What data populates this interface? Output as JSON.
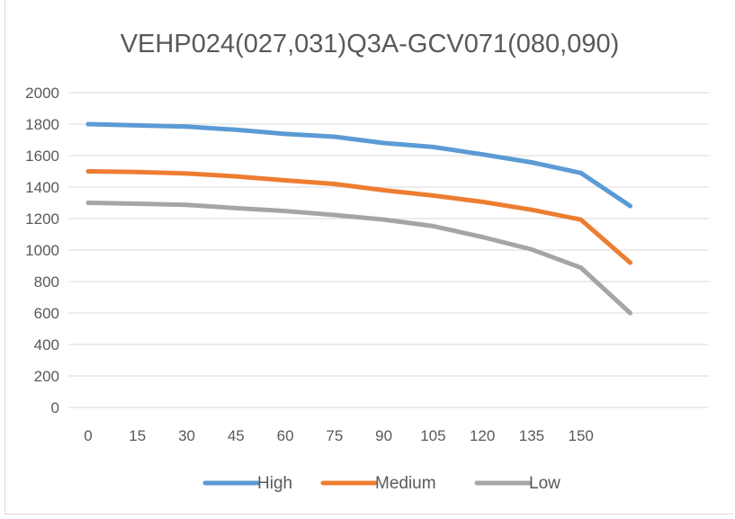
{
  "chart_data": {
    "type": "line",
    "title": "VEHP024(027,031)Q3A-GCV071(080,090)",
    "xlabel": "",
    "ylabel": "",
    "x": [
      "0",
      "15",
      "30",
      "45",
      "60",
      "75",
      "90",
      "105",
      "120",
      "135",
      "150",
      ""
    ],
    "ylim": [
      0,
      2000
    ],
    "yticks": [
      "0",
      "200",
      "400",
      "600",
      "800",
      "1000",
      "1200",
      "1400",
      "1600",
      "1800",
      "2000"
    ],
    "grid": true,
    "legend": "bottom",
    "series": [
      {
        "name": "High",
        "color": "#5b9bd5",
        "values": [
          1800,
          1792,
          1784,
          1764,
          1738,
          1720,
          1680,
          1655,
          1608,
          1557,
          1490,
          1280
        ]
      },
      {
        "name": "Medium",
        "color": "#ed7d31",
        "values": [
          1500,
          1496,
          1486,
          1468,
          1443,
          1420,
          1380,
          1346,
          1306,
          1256,
          1193,
          920
        ]
      },
      {
        "name": "Low",
        "color": "#a5a5a5",
        "values": [
          1300,
          1294,
          1287,
          1266,
          1248,
          1223,
          1194,
          1152,
          1083,
          1004,
          888,
          600
        ]
      }
    ]
  }
}
